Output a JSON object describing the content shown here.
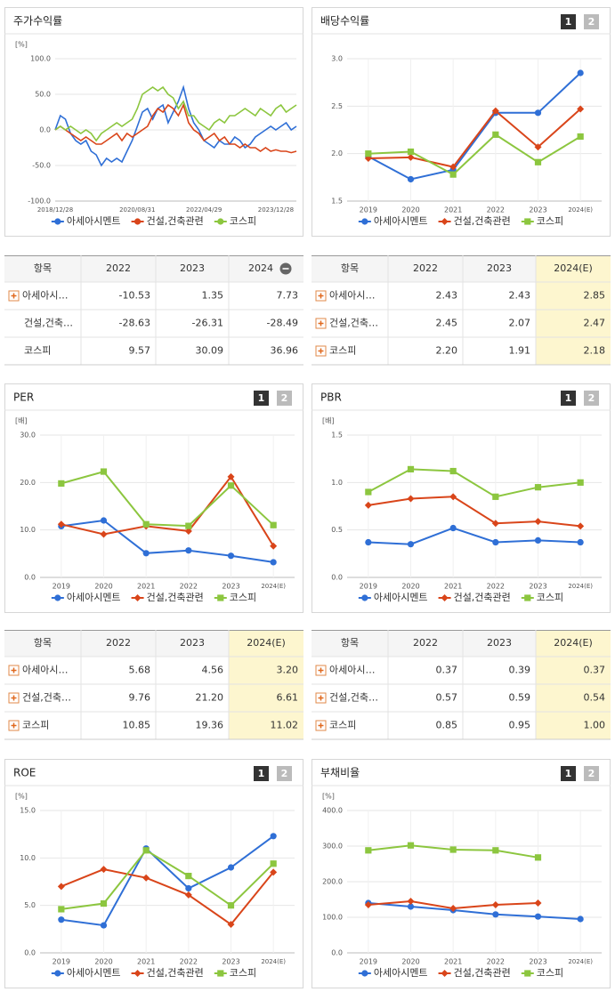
{
  "chart_data": [
    {
      "type": "line",
      "title": "주가수익률",
      "y_label": "[%]",
      "categories": [
        "2018/12/28",
        null,
        null,
        null,
        null,
        null,
        null,
        null,
        null,
        null,
        null,
        null,
        null,
        null,
        null,
        null,
        "2020/08/31",
        null,
        null,
        null,
        null,
        null,
        null,
        null,
        null,
        null,
        null,
        null,
        null,
        "2022/04/29",
        null,
        null,
        null,
        null,
        null,
        null,
        null,
        null,
        null,
        null,
        null,
        null,
        null,
        "2023/12/28",
        null,
        null,
        null,
        null
      ],
      "series": [
        {
          "name": "아세아시멘트",
          "color": "#2f6fd6",
          "values": [
            0,
            20,
            15,
            -5,
            -15,
            -20,
            -15,
            -30,
            -35,
            -50,
            -40,
            -45,
            -40,
            -45,
            -30,
            -15,
            5,
            25,
            30,
            15,
            30,
            35,
            10,
            25,
            40,
            60,
            30,
            10,
            0,
            -15,
            -20,
            -25,
            -15,
            -20,
            -20,
            -10,
            -15,
            -25,
            -20,
            -10,
            -5,
            0,
            5,
            0,
            5,
            10,
            0,
            5
          ]
        },
        {
          "name": "건설,건축관련",
          "color": "#d9451a",
          "values": [
            0,
            5,
            0,
            -5,
            -10,
            -15,
            -10,
            -15,
            -20,
            -20,
            -15,
            -10,
            -5,
            -15,
            -5,
            -10,
            -5,
            0,
            5,
            20,
            30,
            25,
            35,
            30,
            20,
            35,
            10,
            0,
            -5,
            -15,
            -10,
            -5,
            -15,
            -10,
            -20,
            -20,
            -25,
            -20,
            -25,
            -25,
            -30,
            -25,
            -30,
            -28,
            -30,
            -30,
            -32,
            -30
          ]
        },
        {
          "name": "코스피",
          "color": "#8cc63f",
          "values": [
            0,
            5,
            0,
            5,
            0,
            -5,
            0,
            -5,
            -15,
            -5,
            0,
            5,
            10,
            5,
            10,
            15,
            30,
            50,
            55,
            60,
            55,
            60,
            50,
            45,
            30,
            40,
            20,
            20,
            10,
            5,
            0,
            10,
            15,
            10,
            20,
            20,
            25,
            30,
            25,
            20,
            30,
            25,
            20,
            30,
            35,
            25,
            30,
            35
          ]
        }
      ],
      "ylim": [
        -100,
        100
      ],
      "yticks": [
        {
          "value": 100,
          "label": "100.0"
        },
        {
          "value": 50,
          "label": "50.0"
        },
        {
          "value": 0,
          "label": "0.0"
        },
        {
          "value": -50,
          "label": "-50.0"
        },
        {
          "value": -100,
          "label": "-100.0"
        }
      ],
      "grid": true,
      "legend": "bottom"
    },
    {
      "type": "line",
      "title": "배당수익률",
      "pager": [
        "1",
        "2"
      ],
      "categories": [
        "2019",
        "2020",
        "2021",
        "2022",
        "2023",
        "2024(E)"
      ],
      "series": [
        {
          "name": "아세아시멘트",
          "color": "#2f6fd6",
          "marker": "circle",
          "values": [
            1.97,
            1.73,
            1.83,
            2.43,
            2.43,
            2.85
          ]
        },
        {
          "name": "건설,건축관련",
          "color": "#d9451a",
          "marker": "diamond",
          "values": [
            1.95,
            1.96,
            1.86,
            2.45,
            2.07,
            2.47
          ]
        },
        {
          "name": "코스피",
          "color": "#8cc63f",
          "marker": "square",
          "values": [
            2.0,
            2.02,
            1.78,
            2.2,
            1.91,
            2.18
          ]
        }
      ],
      "ylim": [
        1.5,
        3.0
      ],
      "yticks": [
        {
          "value": 3,
          "label": "3.0"
        },
        2.5,
        {
          "value": 2,
          "label": "2.0"
        },
        1.5
      ],
      "grid": true,
      "legend": "bottom"
    },
    {
      "type": "line",
      "title": "PER",
      "pager": [
        "1",
        "2"
      ],
      "y_label": "[배]",
      "categories": [
        "2019",
        "2020",
        "2021",
        "2022",
        "2023",
        "2024(E)"
      ],
      "series": [
        {
          "name": "아세아시멘트",
          "color": "#2f6fd6",
          "marker": "circle",
          "values": [
            10.8,
            12.0,
            5.1,
            5.68,
            4.56,
            3.2
          ]
        },
        {
          "name": "건설,건축관련",
          "color": "#d9451a",
          "marker": "diamond",
          "values": [
            11.2,
            9.1,
            10.8,
            9.76,
            21.2,
            6.61
          ]
        },
        {
          "name": "코스피",
          "color": "#8cc63f",
          "marker": "square",
          "values": [
            19.8,
            22.3,
            11.2,
            10.85,
            19.36,
            11.02
          ]
        }
      ],
      "ylim": [
        0,
        30
      ],
      "yticks": [
        {
          "value": 30,
          "label": "30.0"
        },
        {
          "value": 20,
          "label": "20.0"
        },
        {
          "value": 10,
          "label": "10.0"
        },
        {
          "value": 0,
          "label": "0.0"
        }
      ],
      "grid": true,
      "legend": "bottom"
    },
    {
      "type": "line",
      "title": "PBR",
      "pager": [
        "1",
        "2"
      ],
      "y_label": "[배]",
      "categories": [
        "2019",
        "2020",
        "2021",
        "2022",
        "2023",
        "2024(E)"
      ],
      "series": [
        {
          "name": "아세아시멘트",
          "color": "#2f6fd6",
          "marker": "circle",
          "values": [
            0.37,
            0.35,
            0.52,
            0.37,
            0.39,
            0.37
          ]
        },
        {
          "name": "건설,건축관련",
          "color": "#d9451a",
          "marker": "diamond",
          "values": [
            0.76,
            0.83,
            0.85,
            0.57,
            0.59,
            0.54
          ]
        },
        {
          "name": "코스피",
          "color": "#8cc63f",
          "marker": "square",
          "values": [
            0.9,
            1.14,
            1.12,
            0.85,
            0.95,
            1.0
          ]
        }
      ],
      "ylim": [
        0,
        1.5
      ],
      "yticks": [
        1.5,
        {
          "value": 1,
          "label": "1.0"
        },
        0.5,
        {
          "value": 0,
          "label": "0.0"
        }
      ],
      "grid": true,
      "legend": "bottom"
    },
    {
      "type": "line",
      "title": "ROE",
      "pager": [
        "1",
        "2"
      ],
      "y_label": "[%]",
      "categories": [
        "2019",
        "2020",
        "2021",
        "2022",
        "2023",
        "2024(E)"
      ],
      "series": [
        {
          "name": "아세아시멘트",
          "color": "#2f6fd6",
          "marker": "circle",
          "values": [
            3.5,
            2.9,
            11.0,
            6.8,
            9.0,
            12.3
          ]
        },
        {
          "name": "건설,건축관련",
          "color": "#d9451a",
          "marker": "diamond",
          "values": [
            7.0,
            8.8,
            7.9,
            6.1,
            3.0,
            8.5
          ]
        },
        {
          "name": "코스피",
          "color": "#8cc63f",
          "marker": "square",
          "values": [
            4.6,
            5.2,
            10.8,
            8.1,
            5.0,
            9.4
          ]
        }
      ],
      "ylim": [
        0,
        15
      ],
      "yticks": [
        {
          "value": 15,
          "label": "15.0"
        },
        {
          "value": 10,
          "label": "10.0"
        },
        {
          "value": 5,
          "label": "5.0"
        },
        {
          "value": 0,
          "label": "0.0"
        }
      ],
      "grid": true,
      "legend": "bottom"
    },
    {
      "type": "line",
      "title": "부채비율",
      "pager": [
        "1",
        "2"
      ],
      "y_label": "[%]",
      "categories": [
        "2019",
        "2020",
        "2021",
        "2022",
        "2023",
        "2024(E)"
      ],
      "series": [
        {
          "name": "아세아시멘트",
          "color": "#2f6fd6",
          "marker": "circle",
          "values": [
            140,
            130,
            120,
            108,
            102,
            95
          ]
        },
        {
          "name": "건설,건축관련",
          "color": "#d9451a",
          "marker": "diamond",
          "values": [
            135,
            145,
            125,
            135,
            140,
            null
          ]
        },
        {
          "name": "코스피",
          "color": "#8cc63f",
          "marker": "square",
          "values": [
            288,
            302,
            290,
            288,
            268,
            null
          ]
        }
      ],
      "ylim": [
        0,
        400
      ],
      "yticks": [
        {
          "value": 400,
          "label": "400.0"
        },
        {
          "value": 300,
          "label": "300.0"
        },
        {
          "value": 200,
          "label": "200.0"
        },
        {
          "value": 100,
          "label": "100.0"
        },
        {
          "value": 0,
          "label": "0.0"
        }
      ],
      "grid": true,
      "legend": "bottom"
    }
  ],
  "tables": [
    {
      "header": [
        "항목",
        "2022",
        "2023",
        "2024"
      ],
      "highlight_last": false,
      "rows": [
        {
          "name": "아세아시…",
          "expand": true,
          "values": [
            "-10.53",
            "1.35",
            "7.73"
          ]
        },
        {
          "name": "건설,건축…",
          "expand": false,
          "values": [
            "-28.63",
            "-26.31",
            "-28.49"
          ]
        },
        {
          "name": "코스피",
          "expand": false,
          "values": [
            "9.57",
            "30.09",
            "36.96"
          ]
        }
      ]
    },
    {
      "header": [
        "항목",
        "2022",
        "2023",
        "2024(E)"
      ],
      "highlight_last": true,
      "rows": [
        {
          "name": "아세아시…",
          "expand": true,
          "values": [
            "2.43",
            "2.43",
            "2.85"
          ]
        },
        {
          "name": "건설,건축…",
          "expand": true,
          "values": [
            "2.45",
            "2.07",
            "2.47"
          ]
        },
        {
          "name": "코스피",
          "expand": true,
          "values": [
            "2.20",
            "1.91",
            "2.18"
          ]
        }
      ]
    },
    {
      "header": [
        "항목",
        "2022",
        "2023",
        "2024(E)"
      ],
      "highlight_last": true,
      "rows": [
        {
          "name": "아세아시…",
          "expand": true,
          "values": [
            "5.68",
            "4.56",
            "3.20"
          ]
        },
        {
          "name": "건설,건축…",
          "expand": true,
          "values": [
            "9.76",
            "21.20",
            "6.61"
          ]
        },
        {
          "name": "코스피",
          "expand": true,
          "values": [
            "10.85",
            "19.36",
            "11.02"
          ]
        }
      ]
    },
    {
      "header": [
        "항목",
        "2022",
        "2023",
        "2024(E)"
      ],
      "highlight_last": true,
      "rows": [
        {
          "name": "아세아시…",
          "expand": true,
          "values": [
            "0.37",
            "0.39",
            "0.37"
          ]
        },
        {
          "name": "건설,건축…",
          "expand": true,
          "values": [
            "0.57",
            "0.59",
            "0.54"
          ]
        },
        {
          "name": "코스피",
          "expand": true,
          "values": [
            "0.85",
            "0.95",
            "1.00"
          ]
        }
      ]
    }
  ]
}
